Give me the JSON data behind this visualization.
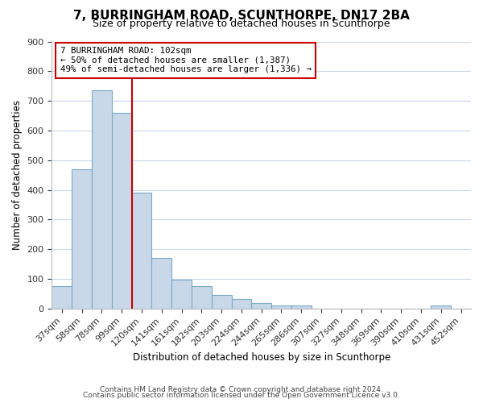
{
  "title": "7, BURRINGHAM ROAD, SCUNTHORPE, DN17 2BA",
  "subtitle": "Size of property relative to detached houses in Scunthorpe",
  "xlabel": "Distribution of detached houses by size in Scunthorpe",
  "ylabel": "Number of detached properties",
  "footer_line1": "Contains HM Land Registry data © Crown copyright and database right 2024.",
  "footer_line2": "Contains public sector information licensed under the Open Government Licence v3.0.",
  "bar_labels": [
    "37sqm",
    "58sqm",
    "78sqm",
    "99sqm",
    "120sqm",
    "141sqm",
    "161sqm",
    "182sqm",
    "203sqm",
    "224sqm",
    "244sqm",
    "265sqm",
    "286sqm",
    "307sqm",
    "327sqm",
    "348sqm",
    "369sqm",
    "390sqm",
    "410sqm",
    "431sqm",
    "452sqm"
  ],
  "bar_values": [
    75,
    470,
    735,
    660,
    390,
    170,
    97,
    75,
    46,
    33,
    18,
    10,
    10,
    0,
    0,
    0,
    0,
    0,
    0,
    10,
    0
  ],
  "bar_color": "#c8d8e8",
  "bar_edge_color": "#7aaac8",
  "highlight_line_bar_index": 3,
  "highlight_line_color": "#cc0000",
  "annotation_line1": "7 BURRINGHAM ROAD: 102sqm",
  "annotation_line2": "← 50% of detached houses are smaller (1,387)",
  "annotation_line3": "49% of semi-detached houses are larger (1,336) →",
  "annotation_box_edge_color": "#cc0000",
  "ylim": [
    0,
    900
  ],
  "yticks": [
    0,
    100,
    200,
    300,
    400,
    500,
    600,
    700,
    800,
    900
  ],
  "background_color": "#ffffff",
  "grid_color": "#c8d8e8"
}
